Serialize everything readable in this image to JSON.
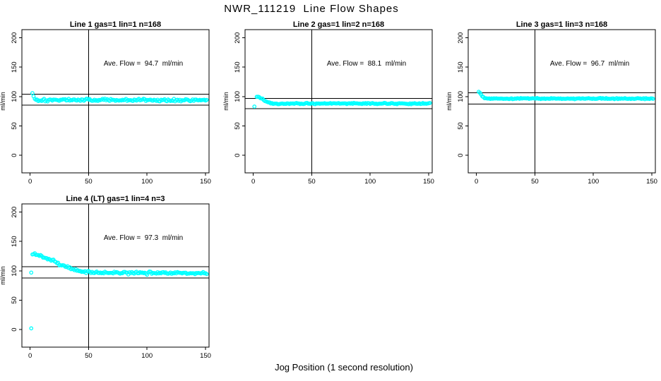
{
  "figure": {
    "title": "NWR_111219  Line Flow Shapes",
    "xlabel": "Jog Position (1 second resolution)",
    "background": "#ffffff",
    "line_color": "#000000",
    "point_color": "#00ffff"
  },
  "chart_data": [
    {
      "type": "scatter",
      "title": "Line 1 gas=1 lin=1 n=168",
      "annotation": "Ave. Flow =  94.7  ml/min",
      "ave_flow": 94.7,
      "n": 168,
      "ylabel": "ml/min",
      "xlabel": "",
      "xlim": [
        -7,
        153
      ],
      "ylim": [
        -30,
        214
      ],
      "x_ticks": [
        0,
        50,
        100,
        150
      ],
      "y_ticks": [
        0,
        50,
        100,
        150,
        200
      ],
      "ref_lines": [
        104.2,
        85.2
      ],
      "vline": 50,
      "grid": false,
      "series_color": "#00ffff",
      "x_range": [
        2,
        151
      ],
      "profile": [
        [
          2,
          106
        ],
        [
          3,
          100
        ],
        [
          4,
          95.5
        ],
        [
          6,
          94.3
        ],
        [
          151,
          94
        ]
      ],
      "noise_sd": 1.1,
      "outliers": []
    },
    {
      "type": "scatter",
      "title": "Line 2 gas=1 lin=2 n=168",
      "annotation": "Ave. Flow =  88.1  ml/min",
      "ave_flow": 88.1,
      "n": 168,
      "ylabel": "ml/min",
      "xlabel": "",
      "xlim": [
        -7,
        153
      ],
      "ylim": [
        -30,
        214
      ],
      "x_ticks": [
        0,
        50,
        100,
        150
      ],
      "y_ticks": [
        0,
        50,
        100,
        150,
        200
      ],
      "ref_lines": [
        96.9,
        79.3
      ],
      "vline": 50,
      "grid": false,
      "series_color": "#00ffff",
      "x_range": [
        3,
        151
      ],
      "profile": [
        [
          3,
          100.5
        ],
        [
          5,
          99.5
        ],
        [
          7,
          97
        ],
        [
          9,
          94.5
        ],
        [
          11,
          91.5
        ],
        [
          13,
          89.5
        ],
        [
          16,
          88.5
        ],
        [
          20,
          88.1
        ],
        [
          151,
          88
        ]
      ],
      "noise_sd": 0.45,
      "outliers": [
        [
          1,
          83
        ]
      ]
    },
    {
      "type": "scatter",
      "title": "Line 3 gas=1 lin=3 n=168",
      "annotation": "Ave. Flow =  96.7  ml/min",
      "ave_flow": 96.7,
      "n": 168,
      "ylabel": "ml/min",
      "xlabel": "",
      "xlim": [
        -7,
        153
      ],
      "ylim": [
        -30,
        214
      ],
      "x_ticks": [
        0,
        50,
        100,
        150
      ],
      "y_ticks": [
        0,
        50,
        100,
        150,
        200
      ],
      "ref_lines": [
        106.4,
        87.0
      ],
      "vline": 50,
      "grid": false,
      "series_color": "#00ffff",
      "x_range": [
        2,
        151
      ],
      "profile": [
        [
          2,
          108
        ],
        [
          3,
          106.5
        ],
        [
          4,
          103
        ],
        [
          5,
          100.5
        ],
        [
          6,
          99
        ],
        [
          7,
          98
        ],
        [
          9,
          97
        ],
        [
          12,
          96.6
        ],
        [
          151,
          96.5
        ]
      ],
      "noise_sd": 0.45,
      "outliers": []
    },
    {
      "type": "scatter",
      "title": "Line 4 (LT) gas=1 lin=4 n=3",
      "annotation": "Ave. Flow =  97.3  ml/min",
      "ave_flow": 97.3,
      "n": 3,
      "ylabel": "ml/min",
      "xlabel": "",
      "xlim": [
        -7,
        153
      ],
      "ylim": [
        -30,
        214
      ],
      "x_ticks": [
        0,
        50,
        100,
        150
      ],
      "y_ticks": [
        0,
        50,
        100,
        150,
        200
      ],
      "ref_lines": [
        107.0,
        87.6
      ],
      "vline": 50,
      "grid": false,
      "series_color": "#00ffff",
      "x_range": [
        2,
        151
      ],
      "profile": [
        [
          2,
          129
        ],
        [
          6,
          127
        ],
        [
          12,
          123
        ],
        [
          18,
          118
        ],
        [
          24,
          112.5
        ],
        [
          30,
          107.5
        ],
        [
          36,
          103
        ],
        [
          42,
          99.8
        ],
        [
          48,
          97.8
        ],
        [
          60,
          96.5
        ],
        [
          151,
          96.2
        ]
      ],
      "noise_sd": 1.2,
      "outliers": [
        [
          1,
          97
        ],
        [
          1,
          2
        ]
      ]
    }
  ]
}
